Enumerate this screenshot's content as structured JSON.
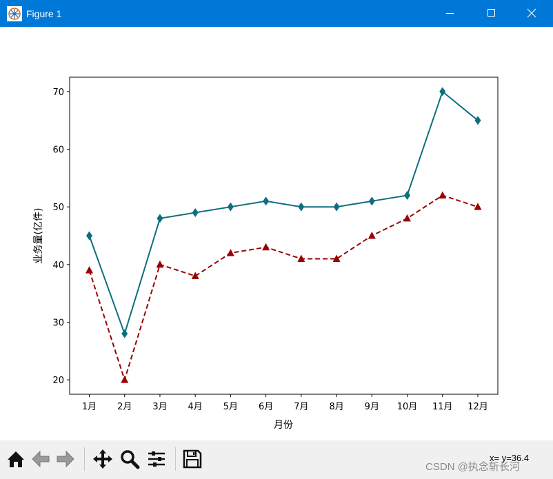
{
  "window": {
    "title": "Figure 1"
  },
  "toolbar": {
    "coord_readout": "x= y=36.4"
  },
  "watermark": "CSDN @执念斩长河",
  "icons": [
    "home-icon",
    "back-icon",
    "forward-icon",
    "pan-icon",
    "zoom-icon",
    "configure-icon",
    "save-icon"
  ],
  "chart_data": {
    "type": "line",
    "title": "",
    "xlabel": "月份",
    "ylabel": "业务量(亿件)",
    "categories": [
      "1月",
      "2月",
      "3月",
      "4月",
      "5月",
      "6月",
      "7月",
      "8月",
      "9月",
      "10月",
      "11月",
      "12月"
    ],
    "ylim": [
      17.5,
      72.5
    ],
    "yticks": [
      20,
      30,
      40,
      50,
      60,
      70
    ],
    "grid": false,
    "series": [
      {
        "values": [
          45,
          28,
          48,
          49,
          50,
          51,
          50,
          50,
          51,
          52,
          70,
          65
        ],
        "color": "#0e6e7e",
        "linestyle": "solid",
        "marker": "diamond"
      },
      {
        "values": [
          39,
          20,
          40,
          38,
          42,
          43,
          41,
          41,
          45,
          48,
          52,
          50
        ],
        "color": "#990000",
        "linestyle": "dashed",
        "marker": "triangle"
      }
    ]
  }
}
